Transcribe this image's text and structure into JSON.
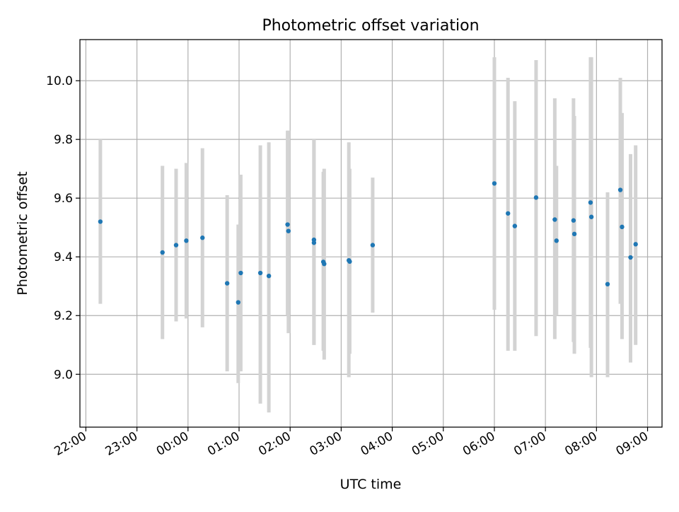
{
  "chart_data": {
    "type": "scatter",
    "title": "Photometric offset variation",
    "xlabel": "UTC time",
    "ylabel": "Photometric offset",
    "x_ticks": [
      "22:00",
      "23:00",
      "00:00",
      "01:00",
      "02:00",
      "03:00",
      "04:00",
      "05:00",
      "06:00",
      "07:00",
      "08:00",
      "09:00"
    ],
    "y_ticks": [
      "9.0",
      "9.2",
      "9.4",
      "9.6",
      "9.8",
      "10.0"
    ],
    "xlim": [
      "21:53",
      "09:17"
    ],
    "ylim": [
      8.82,
      10.14
    ],
    "grid": true,
    "legend": "none",
    "colors": {
      "point": "#1f77b4",
      "errorbar": "#d3d3d3",
      "grid": "#b0b0b0",
      "axes": "#000000"
    },
    "points": [
      {
        "t": "22:17",
        "y": 9.52,
        "lo": 9.24,
        "hi": 9.8
      },
      {
        "t": "23:30",
        "y": 9.415,
        "lo": 9.12,
        "hi": 9.71
      },
      {
        "t": "23:46",
        "y": 9.44,
        "lo": 9.18,
        "hi": 9.7
      },
      {
        "t": "23:58",
        "y": 9.455,
        "lo": 9.19,
        "hi": 9.72
      },
      {
        "t": "00:17",
        "y": 9.465,
        "lo": 9.16,
        "hi": 9.77
      },
      {
        "t": "00:46",
        "y": 9.31,
        "lo": 9.01,
        "hi": 9.61
      },
      {
        "t": "00:59",
        "y": 9.245,
        "lo": 8.97,
        "hi": 9.51
      },
      {
        "t": "01:02",
        "y": 9.345,
        "lo": 9.01,
        "hi": 9.68
      },
      {
        "t": "01:25",
        "y": 9.345,
        "lo": 8.9,
        "hi": 9.78
      },
      {
        "t": "01:35",
        "y": 9.335,
        "lo": 8.87,
        "hi": 9.79
      },
      {
        "t": "01:57",
        "y": 9.51,
        "lo": 9.2,
        "hi": 9.83
      },
      {
        "t": "01:58",
        "y": 9.488,
        "lo": 9.14,
        "hi": 9.83
      },
      {
        "t": "02:28",
        "y": 9.458,
        "lo": 9.1,
        "hi": 9.8
      },
      {
        "t": "02:28",
        "y": 9.448,
        "lo": 9.1,
        "hi": 9.8
      },
      {
        "t": "02:39",
        "y": 9.383,
        "lo": 9.08,
        "hi": 9.69
      },
      {
        "t": "02:40",
        "y": 9.376,
        "lo": 9.05,
        "hi": 9.7
      },
      {
        "t": "03:09",
        "y": 9.388,
        "lo": 8.99,
        "hi": 9.79
      },
      {
        "t": "03:10",
        "y": 9.384,
        "lo": 9.07,
        "hi": 9.7
      },
      {
        "t": "03:37",
        "y": 9.44,
        "lo": 9.21,
        "hi": 9.67
      },
      {
        "t": "06:00",
        "y": 9.65,
        "lo": 9.22,
        "hi": 10.08
      },
      {
        "t": "06:16",
        "y": 9.548,
        "lo": 9.08,
        "hi": 10.01
      },
      {
        "t": "06:24",
        "y": 9.505,
        "lo": 9.08,
        "hi": 9.93
      },
      {
        "t": "06:49",
        "y": 9.602,
        "lo": 9.13,
        "hi": 10.07
      },
      {
        "t": "07:11",
        "y": 9.527,
        "lo": 9.12,
        "hi": 9.94
      },
      {
        "t": "07:13",
        "y": 9.455,
        "lo": 9.2,
        "hi": 9.71
      },
      {
        "t": "07:33",
        "y": 9.524,
        "lo": 9.11,
        "hi": 9.94
      },
      {
        "t": "07:34",
        "y": 9.478,
        "lo": 9.07,
        "hi": 9.88
      },
      {
        "t": "07:53",
        "y": 9.585,
        "lo": 9.09,
        "hi": 10.08
      },
      {
        "t": "07:54",
        "y": 9.536,
        "lo": 8.99,
        "hi": 10.08
      },
      {
        "t": "08:13",
        "y": 9.307,
        "lo": 8.99,
        "hi": 9.62
      },
      {
        "t": "08:28",
        "y": 9.628,
        "lo": 9.24,
        "hi": 10.01
      },
      {
        "t": "08:30",
        "y": 9.502,
        "lo": 9.12,
        "hi": 9.89
      },
      {
        "t": "08:40",
        "y": 9.398,
        "lo": 9.04,
        "hi": 9.75
      },
      {
        "t": "08:46",
        "y": 9.443,
        "lo": 9.1,
        "hi": 9.78
      }
    ]
  }
}
